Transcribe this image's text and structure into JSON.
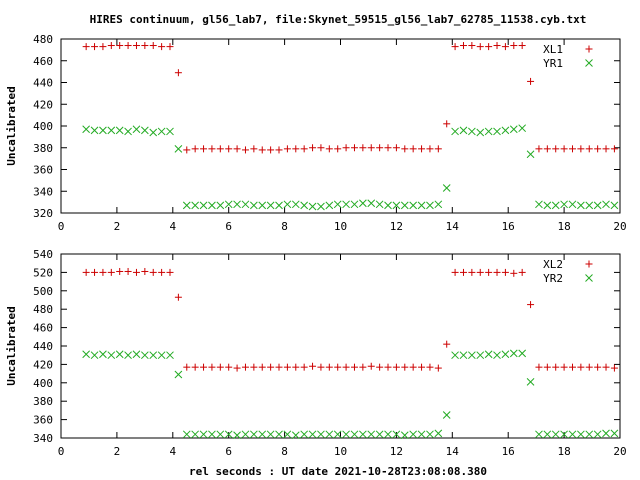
{
  "title": "HIRES continuum, gl56_lab7, file:Skynet_59515_gl56_lab7_62785_11538.cyb.txt",
  "xlabel": "rel seconds : UT date 2021-10-28T23:08:08.380",
  "colors": {
    "plus_series": "#cc0000",
    "cross_series": "#22aa22",
    "frame": "#000000"
  },
  "chart_data": [
    {
      "type": "scatter",
      "ylabel": "Uncalibrated",
      "xlim": [
        0,
        20
      ],
      "ylim": [
        320,
        480
      ],
      "xticks": [
        0,
        2,
        4,
        6,
        8,
        10,
        12,
        14,
        16,
        18,
        20
      ],
      "yticks": [
        320,
        340,
        360,
        380,
        400,
        420,
        440,
        460,
        480
      ],
      "legend_position": "top-right",
      "series": [
        {
          "name": "XL1",
          "marker": "plus",
          "color": "#cc0000",
          "x": [
            0.9,
            1.2,
            1.5,
            1.8,
            2.1,
            2.4,
            2.7,
            3.0,
            3.3,
            3.6,
            3.9,
            4.2,
            4.5,
            4.8,
            5.1,
            5.4,
            5.7,
            6.0,
            6.3,
            6.6,
            6.9,
            7.2,
            7.5,
            7.8,
            8.1,
            8.4,
            8.7,
            9.0,
            9.3,
            9.6,
            9.9,
            10.2,
            10.5,
            10.8,
            11.1,
            11.4,
            11.7,
            12.0,
            12.3,
            12.6,
            12.9,
            13.2,
            13.5,
            13.8,
            14.1,
            14.4,
            14.7,
            15.0,
            15.3,
            15.6,
            15.9,
            16.2,
            16.5,
            16.8,
            17.1,
            17.4,
            17.7,
            18.0,
            18.3,
            18.6,
            18.9,
            19.2,
            19.5,
            19.8
          ],
          "y": [
            473,
            473,
            473,
            474,
            474,
            474,
            474,
            474,
            474,
            473,
            473,
            449,
            378,
            379,
            379,
            379,
            379,
            379,
            379,
            378,
            379,
            378,
            378,
            378,
            379,
            379,
            379,
            380,
            380,
            379,
            379,
            380,
            380,
            380,
            380,
            380,
            380,
            380,
            379,
            379,
            379,
            379,
            379,
            402,
            473,
            474,
            474,
            473,
            473,
            474,
            473,
            474,
            474,
            441,
            379,
            379,
            379,
            379,
            379,
            379,
            379,
            379,
            379,
            379
          ]
        },
        {
          "name": "YR1",
          "marker": "cross",
          "color": "#22aa22",
          "x": [
            0.9,
            1.2,
            1.5,
            1.8,
            2.1,
            2.4,
            2.7,
            3.0,
            3.3,
            3.6,
            3.9,
            4.2,
            4.5,
            4.8,
            5.1,
            5.4,
            5.7,
            6.0,
            6.3,
            6.6,
            6.9,
            7.2,
            7.5,
            7.8,
            8.1,
            8.4,
            8.7,
            9.0,
            9.3,
            9.6,
            9.9,
            10.2,
            10.5,
            10.8,
            11.1,
            11.4,
            11.7,
            12.0,
            12.3,
            12.6,
            12.9,
            13.2,
            13.5,
            13.8,
            14.1,
            14.4,
            14.7,
            15.0,
            15.3,
            15.6,
            15.9,
            16.2,
            16.5,
            16.8,
            17.1,
            17.4,
            17.7,
            18.0,
            18.3,
            18.6,
            18.9,
            19.2,
            19.5,
            19.8
          ],
          "y": [
            397,
            396,
            396,
            396,
            396,
            395,
            397,
            396,
            394,
            395,
            395,
            379,
            327,
            327,
            327,
            327,
            327,
            328,
            328,
            328,
            327,
            327,
            327,
            327,
            328,
            328,
            327,
            326,
            326,
            327,
            328,
            328,
            328,
            329,
            329,
            328,
            327,
            327,
            327,
            327,
            327,
            327,
            328,
            343,
            395,
            396,
            395,
            394,
            395,
            395,
            396,
            397,
            398,
            374,
            328,
            327,
            327,
            328,
            328,
            327,
            327,
            327,
            328,
            327
          ]
        }
      ]
    },
    {
      "type": "scatter",
      "ylabel": "Uncalibrated",
      "xlim": [
        0,
        20
      ],
      "ylim": [
        340,
        540
      ],
      "xticks": [
        0,
        2,
        4,
        6,
        8,
        10,
        12,
        14,
        16,
        18,
        20
      ],
      "yticks": [
        340,
        360,
        380,
        400,
        420,
        440,
        460,
        480,
        500,
        520,
        540
      ],
      "legend_position": "top-right",
      "series": [
        {
          "name": "XL2",
          "marker": "plus",
          "color": "#cc0000",
          "x": [
            0.9,
            1.2,
            1.5,
            1.8,
            2.1,
            2.4,
            2.7,
            3.0,
            3.3,
            3.6,
            3.9,
            4.2,
            4.5,
            4.8,
            5.1,
            5.4,
            5.7,
            6.0,
            6.3,
            6.6,
            6.9,
            7.2,
            7.5,
            7.8,
            8.1,
            8.4,
            8.7,
            9.0,
            9.3,
            9.6,
            9.9,
            10.2,
            10.5,
            10.8,
            11.1,
            11.4,
            11.7,
            12.0,
            12.3,
            12.6,
            12.9,
            13.2,
            13.5,
            13.8,
            14.1,
            14.4,
            14.7,
            15.0,
            15.3,
            15.6,
            15.9,
            16.2,
            16.5,
            16.8,
            17.1,
            17.4,
            17.7,
            18.0,
            18.3,
            18.6,
            18.9,
            19.2,
            19.5,
            19.8
          ],
          "y": [
            520,
            520,
            520,
            520,
            521,
            521,
            520,
            521,
            520,
            520,
            520,
            493,
            417,
            417,
            417,
            417,
            417,
            417,
            416,
            417,
            417,
            417,
            417,
            417,
            417,
            417,
            417,
            418,
            417,
            417,
            417,
            417,
            417,
            417,
            418,
            417,
            417,
            417,
            417,
            417,
            417,
            417,
            416,
            442,
            520,
            520,
            520,
            520,
            520,
            520,
            520,
            519,
            520,
            485,
            417,
            417,
            417,
            417,
            417,
            417,
            417,
            417,
            417,
            416
          ]
        },
        {
          "name": "YR2",
          "marker": "cross",
          "color": "#22aa22",
          "x": [
            0.9,
            1.2,
            1.5,
            1.8,
            2.1,
            2.4,
            2.7,
            3.0,
            3.3,
            3.6,
            3.9,
            4.2,
            4.5,
            4.8,
            5.1,
            5.4,
            5.7,
            6.0,
            6.3,
            6.6,
            6.9,
            7.2,
            7.5,
            7.8,
            8.1,
            8.4,
            8.7,
            9.0,
            9.3,
            9.6,
            9.9,
            10.2,
            10.5,
            10.8,
            11.1,
            11.4,
            11.7,
            12.0,
            12.3,
            12.6,
            12.9,
            13.2,
            13.5,
            13.8,
            14.1,
            14.4,
            14.7,
            15.0,
            15.3,
            15.6,
            15.9,
            16.2,
            16.5,
            16.8,
            17.1,
            17.4,
            17.7,
            18.0,
            18.3,
            18.6,
            18.9,
            19.2,
            19.5,
            19.8
          ],
          "y": [
            431,
            430,
            431,
            430,
            431,
            430,
            431,
            430,
            430,
            430,
            430,
            409,
            344,
            344,
            344,
            344,
            344,
            344,
            343,
            344,
            344,
            344,
            344,
            344,
            344,
            343,
            344,
            344,
            344,
            344,
            344,
            344,
            344,
            344,
            344,
            344,
            344,
            344,
            343,
            344,
            344,
            344,
            345,
            365,
            430,
            430,
            430,
            430,
            431,
            430,
            431,
            432,
            432,
            401,
            344,
            344,
            344,
            344,
            344,
            344,
            344,
            344,
            345,
            345
          ]
        }
      ]
    }
  ]
}
